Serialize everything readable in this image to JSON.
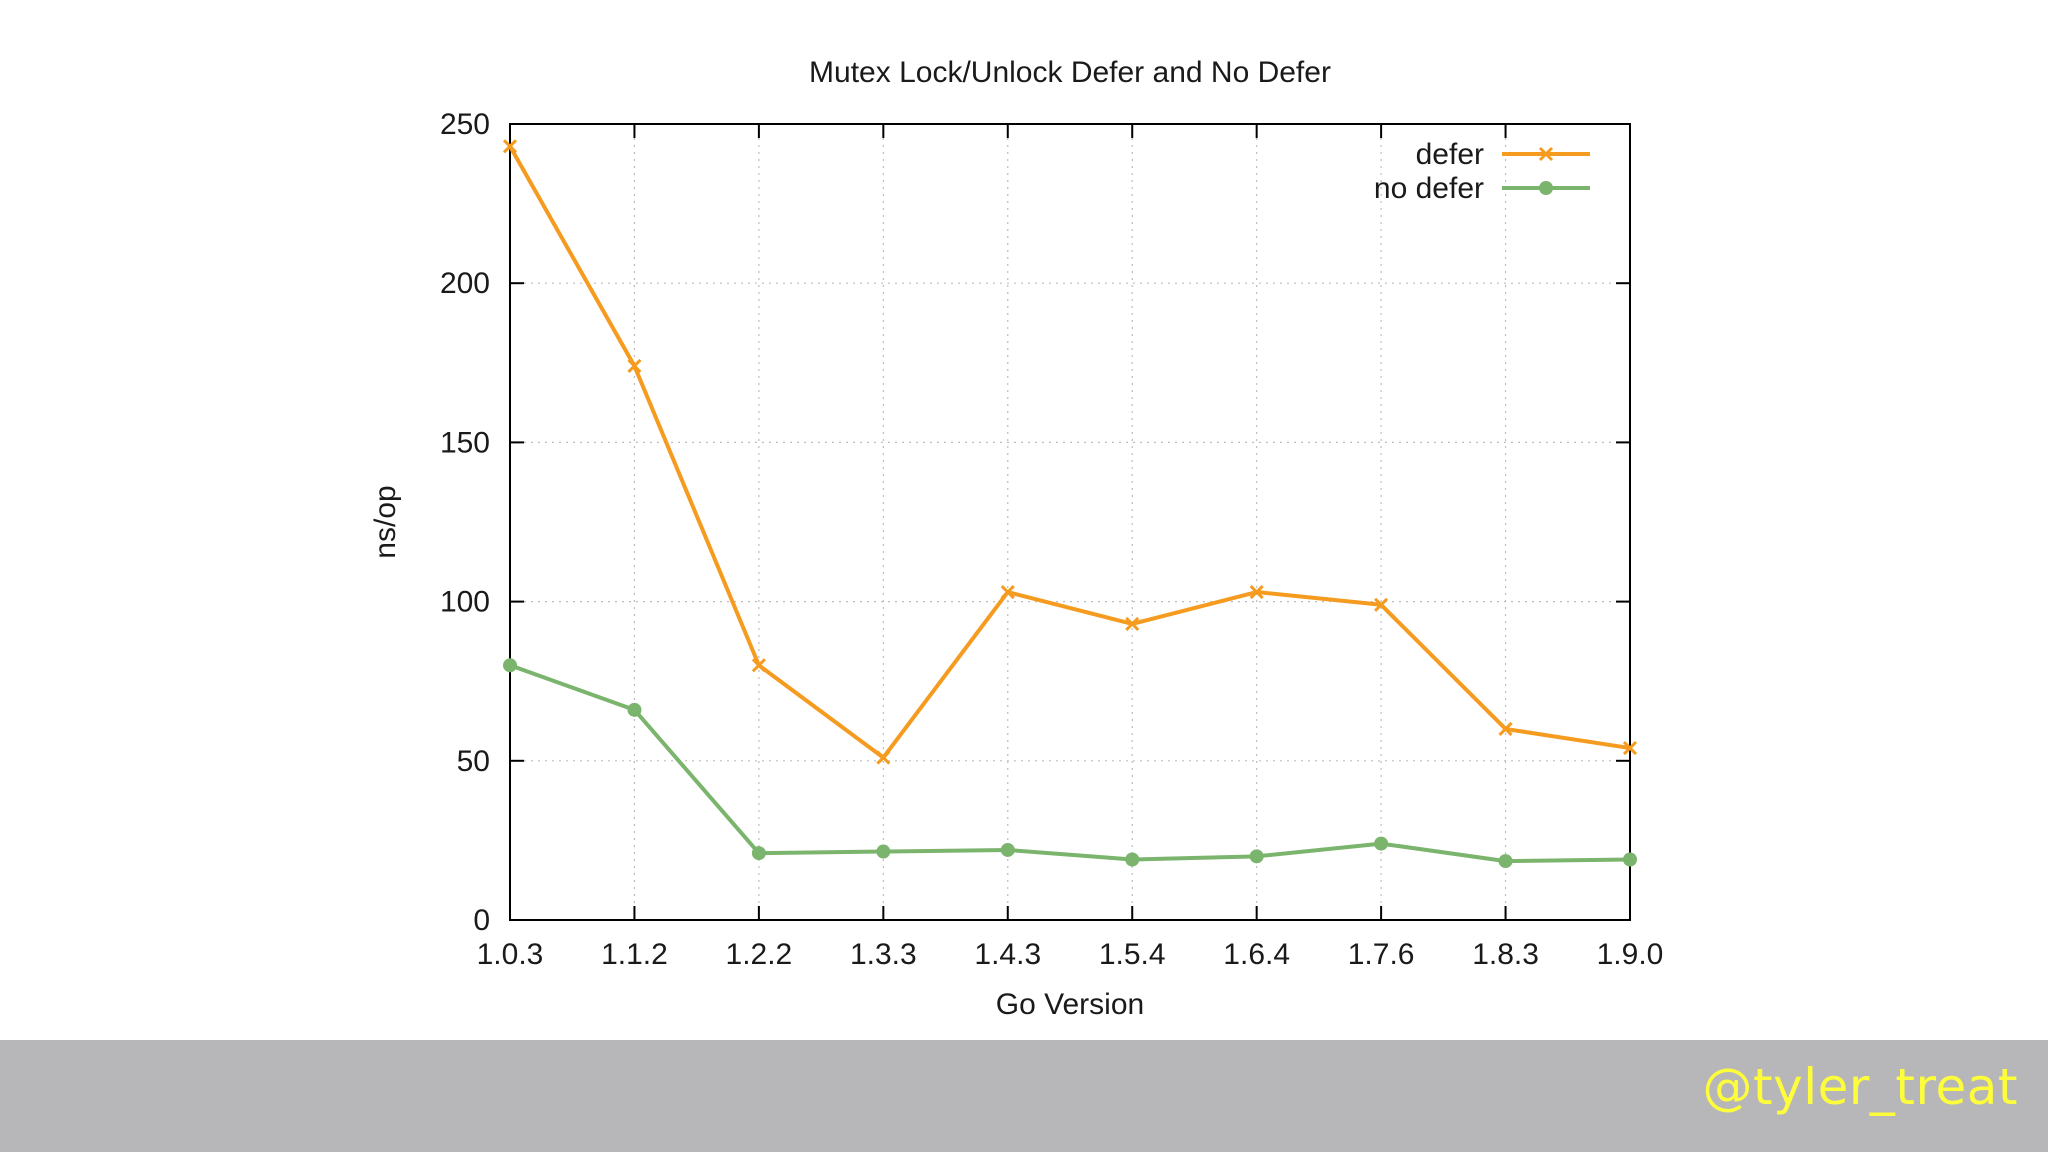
{
  "footer": {
    "handle": "@tyler_treat"
  },
  "chart_data": {
    "type": "line",
    "title": "Mutex Lock/Unlock Defer and No Defer",
    "xlabel": "Go Version",
    "ylabel": "ns/op",
    "categories": [
      "1.0.3",
      "1.1.2",
      "1.2.2",
      "1.3.3",
      "1.4.3",
      "1.5.4",
      "1.6.4",
      "1.7.6",
      "1.8.3",
      "1.9.0"
    ],
    "ylim": [
      0,
      250
    ],
    "yticks": [
      0,
      50,
      100,
      150,
      200,
      250
    ],
    "grid": true,
    "legend_position": "top-right",
    "series": [
      {
        "name": "defer",
        "color": "#f59b1f",
        "marker": "cross",
        "values": [
          243,
          174,
          80,
          51,
          103,
          93,
          103,
          99,
          60,
          54
        ]
      },
      {
        "name": "no defer",
        "color": "#7bb46c",
        "marker": "circle",
        "values": [
          80,
          66,
          21,
          21.5,
          22,
          19,
          20,
          24,
          18.5,
          19
        ]
      }
    ]
  }
}
